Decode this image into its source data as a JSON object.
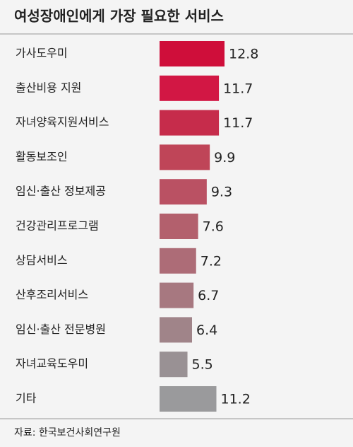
{
  "chart_data": {
    "type": "bar",
    "orientation": "horizontal",
    "title": "여성장애인에게 가장 필요한 서비스",
    "categories": [
      "가사도우미",
      "출산비용 지원",
      "자녀양육지원서비스",
      "활동보조인",
      "임신·출산 정보제공",
      "건강관리프로그램",
      "상담서비스",
      "산후조리서비스",
      "임신·출산 전문병원",
      "자녀교육도우미",
      "기타"
    ],
    "values": [
      12.8,
      11.7,
      11.7,
      9.9,
      9.3,
      7.6,
      7.2,
      6.7,
      6.4,
      5.5,
      11.2
    ],
    "colors": [
      "#cf0e3a",
      "#d21744",
      "#c62c4b",
      "#bf4558",
      "#ba5163",
      "#b3606d",
      "#ad6c77",
      "#a77880",
      "#a08489",
      "#999194",
      "#9a9a9c"
    ],
    "source": "자료: 한국보건사회연구원"
  }
}
